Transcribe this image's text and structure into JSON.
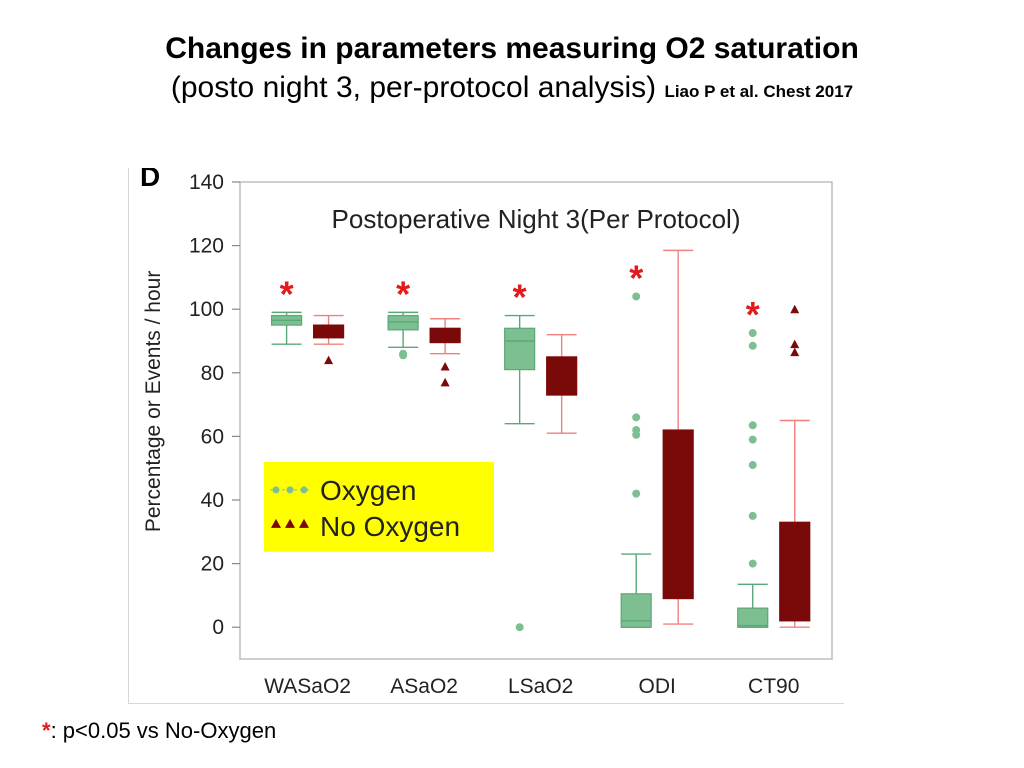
{
  "slide": {
    "title": "Changes in parameters measuring O2 saturation",
    "subtitle": "(posto night 3, per-protocol analysis)",
    "citation": "Liao P et al. Chest 2017",
    "footnote_star": "*",
    "footnote_text": ": p<0.05 vs No-Oxygen"
  },
  "colors": {
    "oxygen_fill": "#7dbf91",
    "oxygen_stroke": "#5aa878",
    "no_oxygen_fill": "#7a0a0a",
    "no_oxygen_whisker": "#f08080",
    "significance": "#e31a1c",
    "legend_bg": "#ffff00"
  },
  "chart_data": {
    "type": "box",
    "panel_label": "D",
    "title": "Postoperative Night 3(Per Protocol)",
    "ylabel": "Percentage or Events / hour",
    "xlabel": "",
    "ylim": [
      -10,
      140
    ],
    "yticks": [
      0,
      20,
      40,
      60,
      80,
      100,
      120,
      140
    ],
    "categories": [
      "WASaO2",
      "ASaO2",
      "LSaO2",
      "ODI",
      "CT90"
    ],
    "legend": {
      "position": "left-middle",
      "items": [
        "Oxygen",
        "No Oxygen"
      ]
    },
    "significant": [
      true,
      true,
      true,
      true,
      true
    ],
    "series": [
      {
        "name": "Oxygen",
        "boxes": [
          {
            "min": 89,
            "q1": 95,
            "median": 96.5,
            "q3": 98,
            "max": 99,
            "outliers": []
          },
          {
            "min": 88,
            "q1": 93.5,
            "median": 96,
            "q3": 98,
            "max": 99,
            "outliers": [
              86,
              85.5
            ]
          },
          {
            "min": 64,
            "q1": 81,
            "median": 90,
            "q3": 94,
            "max": 98,
            "outliers": [
              0
            ]
          },
          {
            "min": 0,
            "q1": 0,
            "median": 2,
            "q3": 10.5,
            "max": 23,
            "outliers": [
              42,
              60.5,
              62,
              66,
              104
            ]
          },
          {
            "min": 0,
            "q1": 0,
            "median": 0.5,
            "q3": 6,
            "max": 13.5,
            "outliers": [
              20,
              35,
              51,
              59,
              63.5,
              88.5,
              92.5
            ]
          }
        ]
      },
      {
        "name": "No Oxygen",
        "boxes": [
          {
            "min": 89,
            "q1": 91,
            "median": 93,
            "q3": 95,
            "max": 98,
            "outliers": [
              84
            ]
          },
          {
            "min": 86,
            "q1": 89.5,
            "median": 91.5,
            "q3": 94,
            "max": 97,
            "outliers": [
              82,
              77
            ]
          },
          {
            "min": 61,
            "q1": 73,
            "median": 79,
            "q3": 85,
            "max": 92,
            "outliers": []
          },
          {
            "min": 1,
            "q1": 9,
            "median": 28.5,
            "q3": 62,
            "max": 118.5,
            "outliers": []
          },
          {
            "min": 0,
            "q1": 2,
            "median": 11,
            "q3": 33,
            "max": 65,
            "outliers": [
              86.5,
              89,
              100
            ]
          }
        ]
      }
    ]
  }
}
